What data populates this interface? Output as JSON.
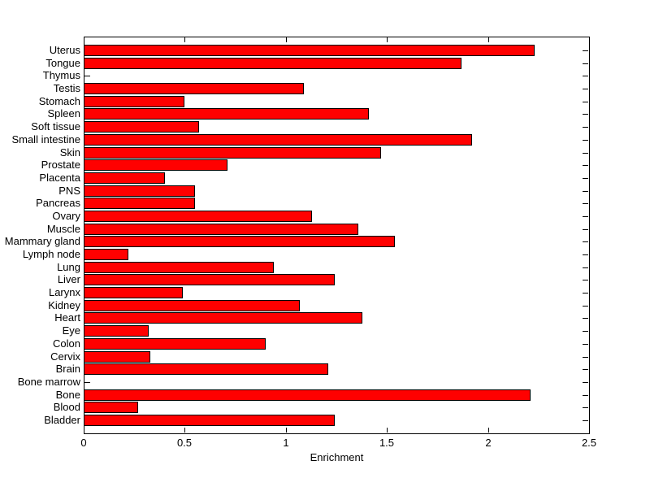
{
  "chart_data": {
    "type": "bar",
    "orientation": "horizontal",
    "title": "",
    "xlabel": "Enrichment",
    "ylabel": "",
    "xlim": [
      0,
      2.5
    ],
    "xtick_values": [
      0,
      0.5,
      1,
      1.5,
      2,
      2.5
    ],
    "xtick_labels": [
      "0",
      "0.5",
      "1",
      "1.5",
      "2",
      "2.5"
    ],
    "grid": false,
    "legend": null,
    "bar_color": "#FF0000",
    "bar_edge_color": "#000000",
    "background_color": "#FFFFFF",
    "categories_order": "top-to-bottom",
    "categories": [
      "Uterus",
      "Tongue",
      "Thymus",
      "Testis",
      "Stomach",
      "Spleen",
      "Soft tissue",
      "Small intestine",
      "Skin",
      "Prostate",
      "Placenta",
      "PNS",
      "Pancreas",
      "Ovary",
      "Muscle",
      "Mammary gland",
      "Lymph node",
      "Lung",
      "Liver",
      "Larynx",
      "Kidney",
      "Heart",
      "Eye",
      "Colon",
      "Cervix",
      "Brain",
      "Bone marrow",
      "Bone",
      "Blood",
      "Bladder"
    ],
    "values": [
      2.23,
      1.87,
      0,
      1.09,
      0.5,
      1.41,
      0.57,
      1.92,
      1.47,
      0.71,
      0.4,
      0.55,
      0.55,
      1.13,
      1.36,
      1.54,
      0.22,
      0.94,
      1.24,
      0.49,
      1.07,
      1.38,
      0.32,
      0.9,
      0.33,
      1.21,
      0,
      2.21,
      0.27,
      1.24
    ]
  }
}
